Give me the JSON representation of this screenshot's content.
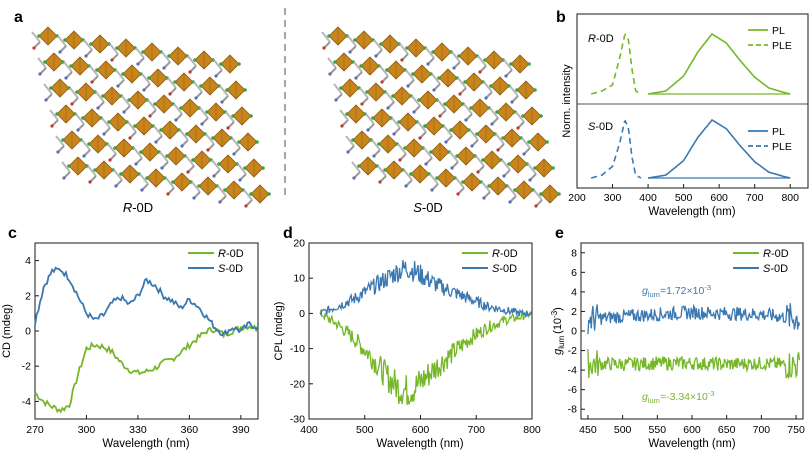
{
  "colors": {
    "green": "#76b72a",
    "blue": "#3a78b2",
    "octahedron": "#c9841b",
    "octahedron_edge": "#8a5a12",
    "axis": "#1a1a1a",
    "dashed_divider": "#888888"
  },
  "panel_a": {
    "letter": "a",
    "left_caption": "R-0D",
    "left_caption_italic": "R",
    "left_caption_rest": "-0D",
    "right_caption": "S-0D",
    "right_caption_italic": "S",
    "right_caption_rest": "-0D"
  },
  "panel_b": {
    "letter": "b",
    "ylabel": "Norm. intensity",
    "xlabel": "Wavelength (nm)",
    "xticks": [
      "200",
      "300",
      "400",
      "500",
      "600",
      "700",
      "800"
    ],
    "label_R": "-0D",
    "label_R_italic": "R",
    "label_S": "-0D",
    "label_S_italic": "S",
    "legend_top": [
      "PL",
      "PLE"
    ],
    "legend_bottom": [
      "PL",
      "PLE"
    ]
  },
  "panel_c": {
    "letter": "c",
    "ylabel": "CD (mdeg)",
    "xlabel": "Wavelength (nm)",
    "xticks": [
      "270",
      "300",
      "330",
      "360",
      "390"
    ],
    "yticks": [
      "4",
      "2",
      "0",
      "-2",
      "-4"
    ],
    "legend": [
      {
        "italic": "R",
        "rest": "-0D"
      },
      {
        "italic": "S",
        "rest": "-0D"
      }
    ]
  },
  "panel_d": {
    "letter": "d",
    "ylabel": "CPL (mdeg)",
    "xlabel": "Wavelength (nm)",
    "xticks": [
      "400",
      "500",
      "600",
      "700",
      "800"
    ],
    "yticks": [
      "20",
      "10",
      "0",
      "-10",
      "-20",
      "-30"
    ],
    "legend": [
      {
        "italic": "R",
        "rest": "-0D"
      },
      {
        "italic": "S",
        "rest": "-0D"
      }
    ]
  },
  "panel_e": {
    "letter": "e",
    "ylabel_main": "g",
    "ylabel_sub": "lum",
    "ylabel_unit": "(10",
    "ylabel_exp": "-3",
    "ylabel_close": ")",
    "xlabel": "Wavelength (nm)",
    "xticks": [
      "450",
      "500",
      "550",
      "600",
      "650",
      "700",
      "750"
    ],
    "yticks": [
      "8",
      "6",
      "4",
      "2",
      "0",
      "-2",
      "-4",
      "-6",
      "-8"
    ],
    "legend": [
      {
        "italic": "R",
        "rest": "-0D"
      },
      {
        "italic": "S",
        "rest": "-0D"
      }
    ],
    "annot_S_g": "g",
    "annot_S_sub": "lum",
    "annot_S_val": "=1.72×10",
    "annot_S_exp": "-3",
    "annot_R_g": "g",
    "annot_R_sub": "lum",
    "annot_R_val": "=-3.34×10",
    "annot_R_exp": "-3"
  },
  "chart_data": [
    {
      "type": "line",
      "panel": "b",
      "xlabel": "Wavelength (nm)",
      "ylabel": "Norm. intensity",
      "xlim": [
        200,
        850
      ],
      "series": [
        {
          "name": "R-0D PL",
          "x": [
            400,
            450,
            500,
            540,
            580,
            620,
            660,
            700,
            740,
            780,
            800
          ],
          "y": [
            0.0,
            0.05,
            0.3,
            0.7,
            1.0,
            0.85,
            0.55,
            0.28,
            0.1,
            0.03,
            0.0
          ]
        },
        {
          "name": "R-0D PLE",
          "x": [
            240,
            270,
            300,
            320,
            335,
            345,
            355,
            365,
            380
          ],
          "y": [
            0.0,
            0.05,
            0.15,
            0.6,
            1.0,
            0.9,
            0.4,
            0.05,
            0.0
          ]
        },
        {
          "name": "S-0D PL",
          "x": [
            400,
            450,
            500,
            540,
            580,
            620,
            660,
            700,
            740,
            780,
            800
          ],
          "y": [
            0.0,
            0.05,
            0.3,
            0.7,
            1.0,
            0.85,
            0.55,
            0.28,
            0.1,
            0.03,
            0.0
          ]
        },
        {
          "name": "S-0D PLE",
          "x": [
            240,
            270,
            300,
            320,
            335,
            345,
            355,
            365,
            380
          ],
          "y": [
            0.0,
            0.05,
            0.2,
            0.6,
            1.0,
            0.85,
            0.35,
            0.05,
            0.0
          ]
        }
      ]
    },
    {
      "type": "line",
      "panel": "c",
      "xlabel": "Wavelength (nm)",
      "ylabel": "CD (mdeg)",
      "xlim": [
        270,
        400
      ],
      "ylim": [
        -5,
        5
      ],
      "series": [
        {
          "name": "R-0D",
          "x": [
            270,
            275,
            280,
            285,
            290,
            295,
            300,
            305,
            310,
            315,
            320,
            325,
            330,
            335,
            340,
            345,
            350,
            355,
            360,
            365,
            370,
            375,
            380,
            385,
            390,
            395,
            400
          ],
          "y": [
            -3.5,
            -4.0,
            -4.3,
            -4.5,
            -4.2,
            -2.5,
            -1.0,
            -0.8,
            -0.9,
            -1.2,
            -1.8,
            -2.2,
            -2.4,
            -2.3,
            -2.1,
            -1.8,
            -1.6,
            -1.2,
            -0.8,
            -0.4,
            0.0,
            0.1,
            -0.2,
            0.0,
            0.2,
            0.3,
            0.1
          ]
        },
        {
          "name": "S-0D",
          "x": [
            270,
            275,
            280,
            285,
            290,
            295,
            300,
            305,
            310,
            315,
            320,
            325,
            330,
            335,
            340,
            345,
            350,
            355,
            360,
            365,
            370,
            375,
            380,
            385,
            390,
            395,
            400
          ],
          "y": [
            0.5,
            2.5,
            3.4,
            3.5,
            3.0,
            2.0,
            1.0,
            0.6,
            0.9,
            1.6,
            1.9,
            1.5,
            2.0,
            2.9,
            2.6,
            2.0,
            1.7,
            1.3,
            1.8,
            1.4,
            0.8,
            0.2,
            -0.2,
            0.2,
            0.0,
            0.4,
            0.2
          ]
        }
      ]
    },
    {
      "type": "line",
      "panel": "d",
      "xlabel": "Wavelength (nm)",
      "ylabel": "CPL (mdeg)",
      "xlim": [
        400,
        800
      ],
      "ylim": [
        -30,
        20
      ],
      "series": [
        {
          "name": "R-0D",
          "x": [
            420,
            450,
            480,
            510,
            540,
            560,
            575,
            590,
            610,
            630,
            660,
            690,
            720,
            750,
            780,
            800
          ],
          "y": [
            0,
            -3,
            -7,
            -12,
            -18,
            -21,
            -22,
            -21,
            -18,
            -15,
            -11,
            -7,
            -4,
            -2,
            -1,
            0
          ]
        },
        {
          "name": "S-0D",
          "x": [
            420,
            450,
            480,
            510,
            540,
            560,
            575,
            590,
            610,
            630,
            660,
            690,
            720,
            750,
            780,
            800
          ],
          "y": [
            0,
            2,
            4,
            7,
            10,
            12,
            13,
            12,
            10,
            8,
            6,
            4,
            2,
            1,
            0,
            0
          ]
        }
      ]
    },
    {
      "type": "line",
      "panel": "e",
      "xlabel": "Wavelength (nm)",
      "ylabel": "g_lum (10^-3)",
      "xlim": [
        440,
        760
      ],
      "ylim": [
        -9,
        9
      ],
      "series": [
        {
          "name": "R-0D",
          "x": [
            450,
            500,
            550,
            600,
            650,
            700,
            750
          ],
          "y": [
            -3.3,
            -3.4,
            -3.3,
            -3.3,
            -3.4,
            -3.3,
            -3.5
          ]
        },
        {
          "name": "S-0D",
          "x": [
            450,
            500,
            550,
            600,
            650,
            700,
            750
          ],
          "y": [
            1.2,
            1.5,
            1.7,
            1.9,
            1.8,
            1.7,
            1.3
          ]
        }
      ]
    }
  ]
}
